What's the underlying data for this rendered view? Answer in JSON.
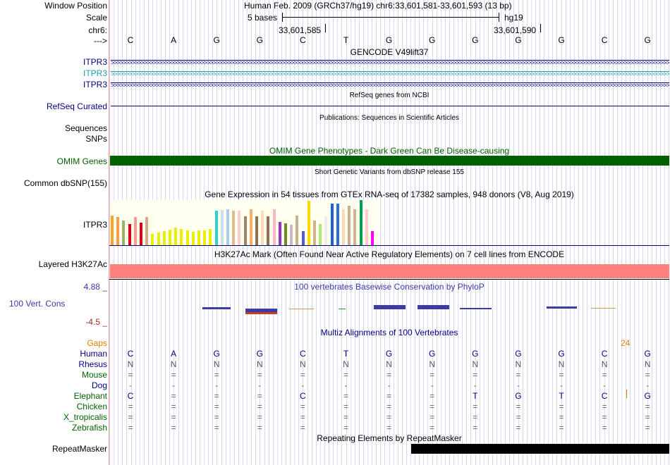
{
  "header": {
    "window_position_label": "Window Position",
    "scale_label": "Scale",
    "chrom_label": "chr6:",
    "strand_label": "--->",
    "assembly_position": "Human Feb. 2009 (GRCh37/hg19)   chr6:33,601,581-33,601,593 (13 bp)",
    "scale_text": "5 bases",
    "scale_assembly": "hg19",
    "coord_1": "33,601,585",
    "coord_2": "33,601,590"
  },
  "bases": [
    "C",
    "A",
    "G",
    "G",
    "C",
    "T",
    "G",
    "G",
    "G",
    "G",
    "G",
    "C",
    "G"
  ],
  "tracks": {
    "gencode_title": "GENCODE V49lift37",
    "gencode_rows": [
      "ITPR3",
      "ITPR3",
      "ITPR3"
    ],
    "refseq_title": "RefSeq genes from NCBI",
    "refseq_label": "RefSeq Curated",
    "publications_title": "Publications: Sequences in Scientific Articles",
    "sequences_label": "Sequences",
    "snps_label": "SNPs",
    "omim_title": "OMIM Gene Phenotypes - Dark Green Can Be Disease-causing",
    "omim_label": "OMIM Genes",
    "dbsnp_title": "Short Genetic Variants from dbSNP release 155",
    "dbsnp_label": "Common dbSNP(155)",
    "gtex_title": "Gene Expression in 54 tissues from GTEx RNA-seq of 17382 samples, 948 donors (V8, Aug 2019)",
    "gtex_label": "ITPR3",
    "h3k27ac_title": "H3K27Ac Mark (Often Found Near Active Regulatory Elements) on 7 cell lines from ENCODE",
    "h3k27ac_label": "Layered H3K27Ac",
    "phylop_title": "100 vertebrates Basewise Conservation by PhyloP",
    "phylop_max": "4.88 _",
    "phylop_label": "100 Vert. Cons",
    "phylop_min": "-4.5 _",
    "multiz_title": "Multiz Alignments of 100 Vertebrates",
    "gaps_label": "Gaps",
    "gaps_count": "24",
    "repeat_title": "Repeating Elements by RepeatMasker",
    "repeat_label": "RepeatMasker"
  },
  "species": [
    {
      "name": "Human",
      "color": "#000080",
      "bases": [
        "C",
        "A",
        "G",
        "G",
        "C",
        "T",
        "G",
        "G",
        "G",
        "G",
        "G",
        "C",
        "G"
      ]
    },
    {
      "name": "Rhesus",
      "color": "#000080",
      "bases": [
        "N",
        "N",
        "N",
        "N",
        "N",
        "N",
        "N",
        "N",
        "N",
        "N",
        "N",
        "N",
        "N"
      ]
    },
    {
      "name": "Mouse",
      "color": "#006400",
      "bases": [
        "=",
        "=",
        "=",
        "=",
        "=",
        "=",
        "=",
        "=",
        "=",
        "=",
        "=",
        "=",
        "="
      ]
    },
    {
      "name": "Dog",
      "color": "#000080",
      "bases": [
        "-",
        "-",
        "-",
        "-",
        "-",
        "-",
        "-",
        "-",
        "-",
        "-",
        "-",
        "-",
        "-"
      ]
    },
    {
      "name": "Elephant",
      "color": "#006400",
      "bases": [
        "C",
        "=",
        "=",
        "=",
        "C",
        "=",
        "=",
        "=",
        "T",
        "G",
        "T",
        "C",
        "G"
      ]
    },
    {
      "name": "Chicken",
      "color": "#006400",
      "bases": [
        "=",
        "=",
        "=",
        "=",
        "=",
        "=",
        "=",
        "=",
        "=",
        "=",
        "=",
        "=",
        "="
      ]
    },
    {
      "name": "X_tropicalis",
      "color": "#006400",
      "bases": [
        "=",
        "=",
        "=",
        "=",
        "=",
        "=",
        "=",
        "=",
        "=",
        "=",
        "=",
        "=",
        "="
      ]
    },
    {
      "name": "Zebrafish",
      "color": "#006400",
      "bases": [
        "=",
        "=",
        "=",
        "=",
        "=",
        "=",
        "=",
        "=",
        "=",
        "=",
        "=",
        "=",
        "="
      ]
    }
  ],
  "gtex_bars": [
    {
      "h": 0.66,
      "c": "#f5a623"
    },
    {
      "h": 0.62,
      "c": "#ff9c4c"
    },
    {
      "h": 0.55,
      "c": "#9cb46a"
    },
    {
      "h": 0.47,
      "c": "#d0021b"
    },
    {
      "h": 0.62,
      "c": "#ff9999"
    },
    {
      "h": 0.5,
      "c": "#d0021b"
    },
    {
      "h": 0.62,
      "c": "#d4a888"
    },
    {
      "h": 0.25,
      "c": "#eeee00"
    },
    {
      "h": 0.28,
      "c": "#eeee00"
    },
    {
      "h": 0.31,
      "c": "#eeee00"
    },
    {
      "h": 0.34,
      "c": "#eeee00"
    },
    {
      "h": 0.39,
      "c": "#eeee00"
    },
    {
      "h": 0.36,
      "c": "#eeee00"
    },
    {
      "h": 0.33,
      "c": "#eeee00"
    },
    {
      "h": 0.3,
      "c": "#eeee00"
    },
    {
      "h": 0.33,
      "c": "#eeee00"
    },
    {
      "h": 0.33,
      "c": "#eeee00"
    },
    {
      "h": 0.36,
      "c": "#eeee00"
    },
    {
      "h": 0.77,
      "c": "#2bd2d2"
    },
    {
      "h": 0.78,
      "c": "#ccddee"
    },
    {
      "h": 0.8,
      "c": "#aaccee"
    },
    {
      "h": 0.77,
      "c": "#ddbb99"
    },
    {
      "h": 0.77,
      "c": "#ffcccc"
    },
    {
      "h": 0.64,
      "c": "#a0856a"
    },
    {
      "h": 0.8,
      "c": "#f5b070"
    },
    {
      "h": 0.64,
      "c": "#8b7355"
    },
    {
      "h": 0.77,
      "c": "#ffdab9"
    },
    {
      "h": 0.64,
      "c": "#8b7355"
    },
    {
      "h": 0.8,
      "c": "#ffb6c1"
    },
    {
      "h": 0.52,
      "c": "#9932cc"
    },
    {
      "h": 0.48,
      "c": "#6b8e23"
    },
    {
      "h": 0.45,
      "c": "#cdb5cd"
    },
    {
      "h": 0.66,
      "c": "#c8b090"
    },
    {
      "h": 0.31,
      "c": "#5a5ad0"
    },
    {
      "h": 0.98,
      "c": "#ffd700"
    },
    {
      "h": 0.55,
      "c": "#d2b48c"
    },
    {
      "h": 0.47,
      "c": "#b0e57c"
    },
    {
      "h": 0.64,
      "c": "#eeeeee"
    },
    {
      "h": 0.92,
      "c": "#1f5fd6"
    },
    {
      "h": 0.92,
      "c": "#2e6fd6"
    },
    {
      "h": 0.8,
      "c": "#ffdab9"
    },
    {
      "h": 0.88,
      "c": "#c8b090"
    },
    {
      "h": 0.8,
      "c": "#d2b48c"
    },
    {
      "h": 1.0,
      "c": "#00a050"
    },
    {
      "h": 0.8,
      "c": "#ffcccc"
    },
    {
      "h": 0.31,
      "c": "#ff00ff"
    }
  ],
  "colors": {
    "label_blue": "#000080",
    "gencode_teal": "#1a9fb0",
    "omim_green": "#005f00",
    "h3k27ac_pink": "#ff7f7f",
    "phylop_blue": "#3a3aa8",
    "phylop_red": "#a03020",
    "gaps_orange": "#e08000"
  }
}
